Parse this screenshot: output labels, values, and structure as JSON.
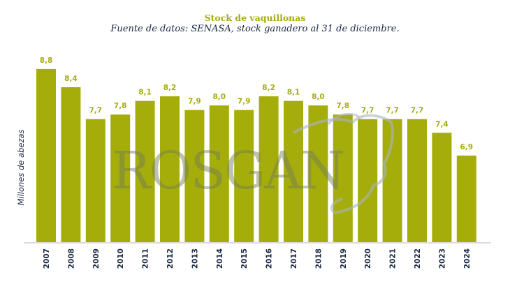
{
  "chart_data": {
    "type": "bar",
    "title": "Stock de vaquillonas",
    "subtitle": "Fuente de datos: SENASA, stock ganadero al 31 de diciembre.",
    "xlabel": "",
    "ylabel": "Millones de abezas",
    "categories": [
      "2007",
      "2008",
      "2009",
      "2010",
      "2011",
      "2012",
      "2013",
      "2014",
      "2015",
      "2016",
      "2017",
      "2018",
      "2019",
      "2020",
      "2021",
      "2022",
      "2023",
      "2024"
    ],
    "values": [
      8.8,
      8.4,
      7.7,
      7.8,
      8.1,
      8.2,
      7.9,
      8.0,
      7.9,
      8.2,
      8.1,
      8.0,
      7.8,
      7.7,
      7.7,
      7.7,
      7.4,
      6.9
    ],
    "value_labels": [
      "8,8",
      "8,4",
      "7,7",
      "7,8",
      "8,1",
      "8,2",
      "7,9",
      "8,0",
      "7,9",
      "8,2",
      "8,1",
      "8,0",
      "7,8",
      "7,7",
      "7,7",
      "7,7",
      "7,4",
      "6,9"
    ],
    "ylim": [
      5.0,
      9.0
    ],
    "grid": false,
    "legend": "none",
    "bar_color": "#a5ad0a",
    "label_color": "#a5ad0a",
    "tick_color": "#1a2740",
    "watermark": "ROSGAN"
  }
}
